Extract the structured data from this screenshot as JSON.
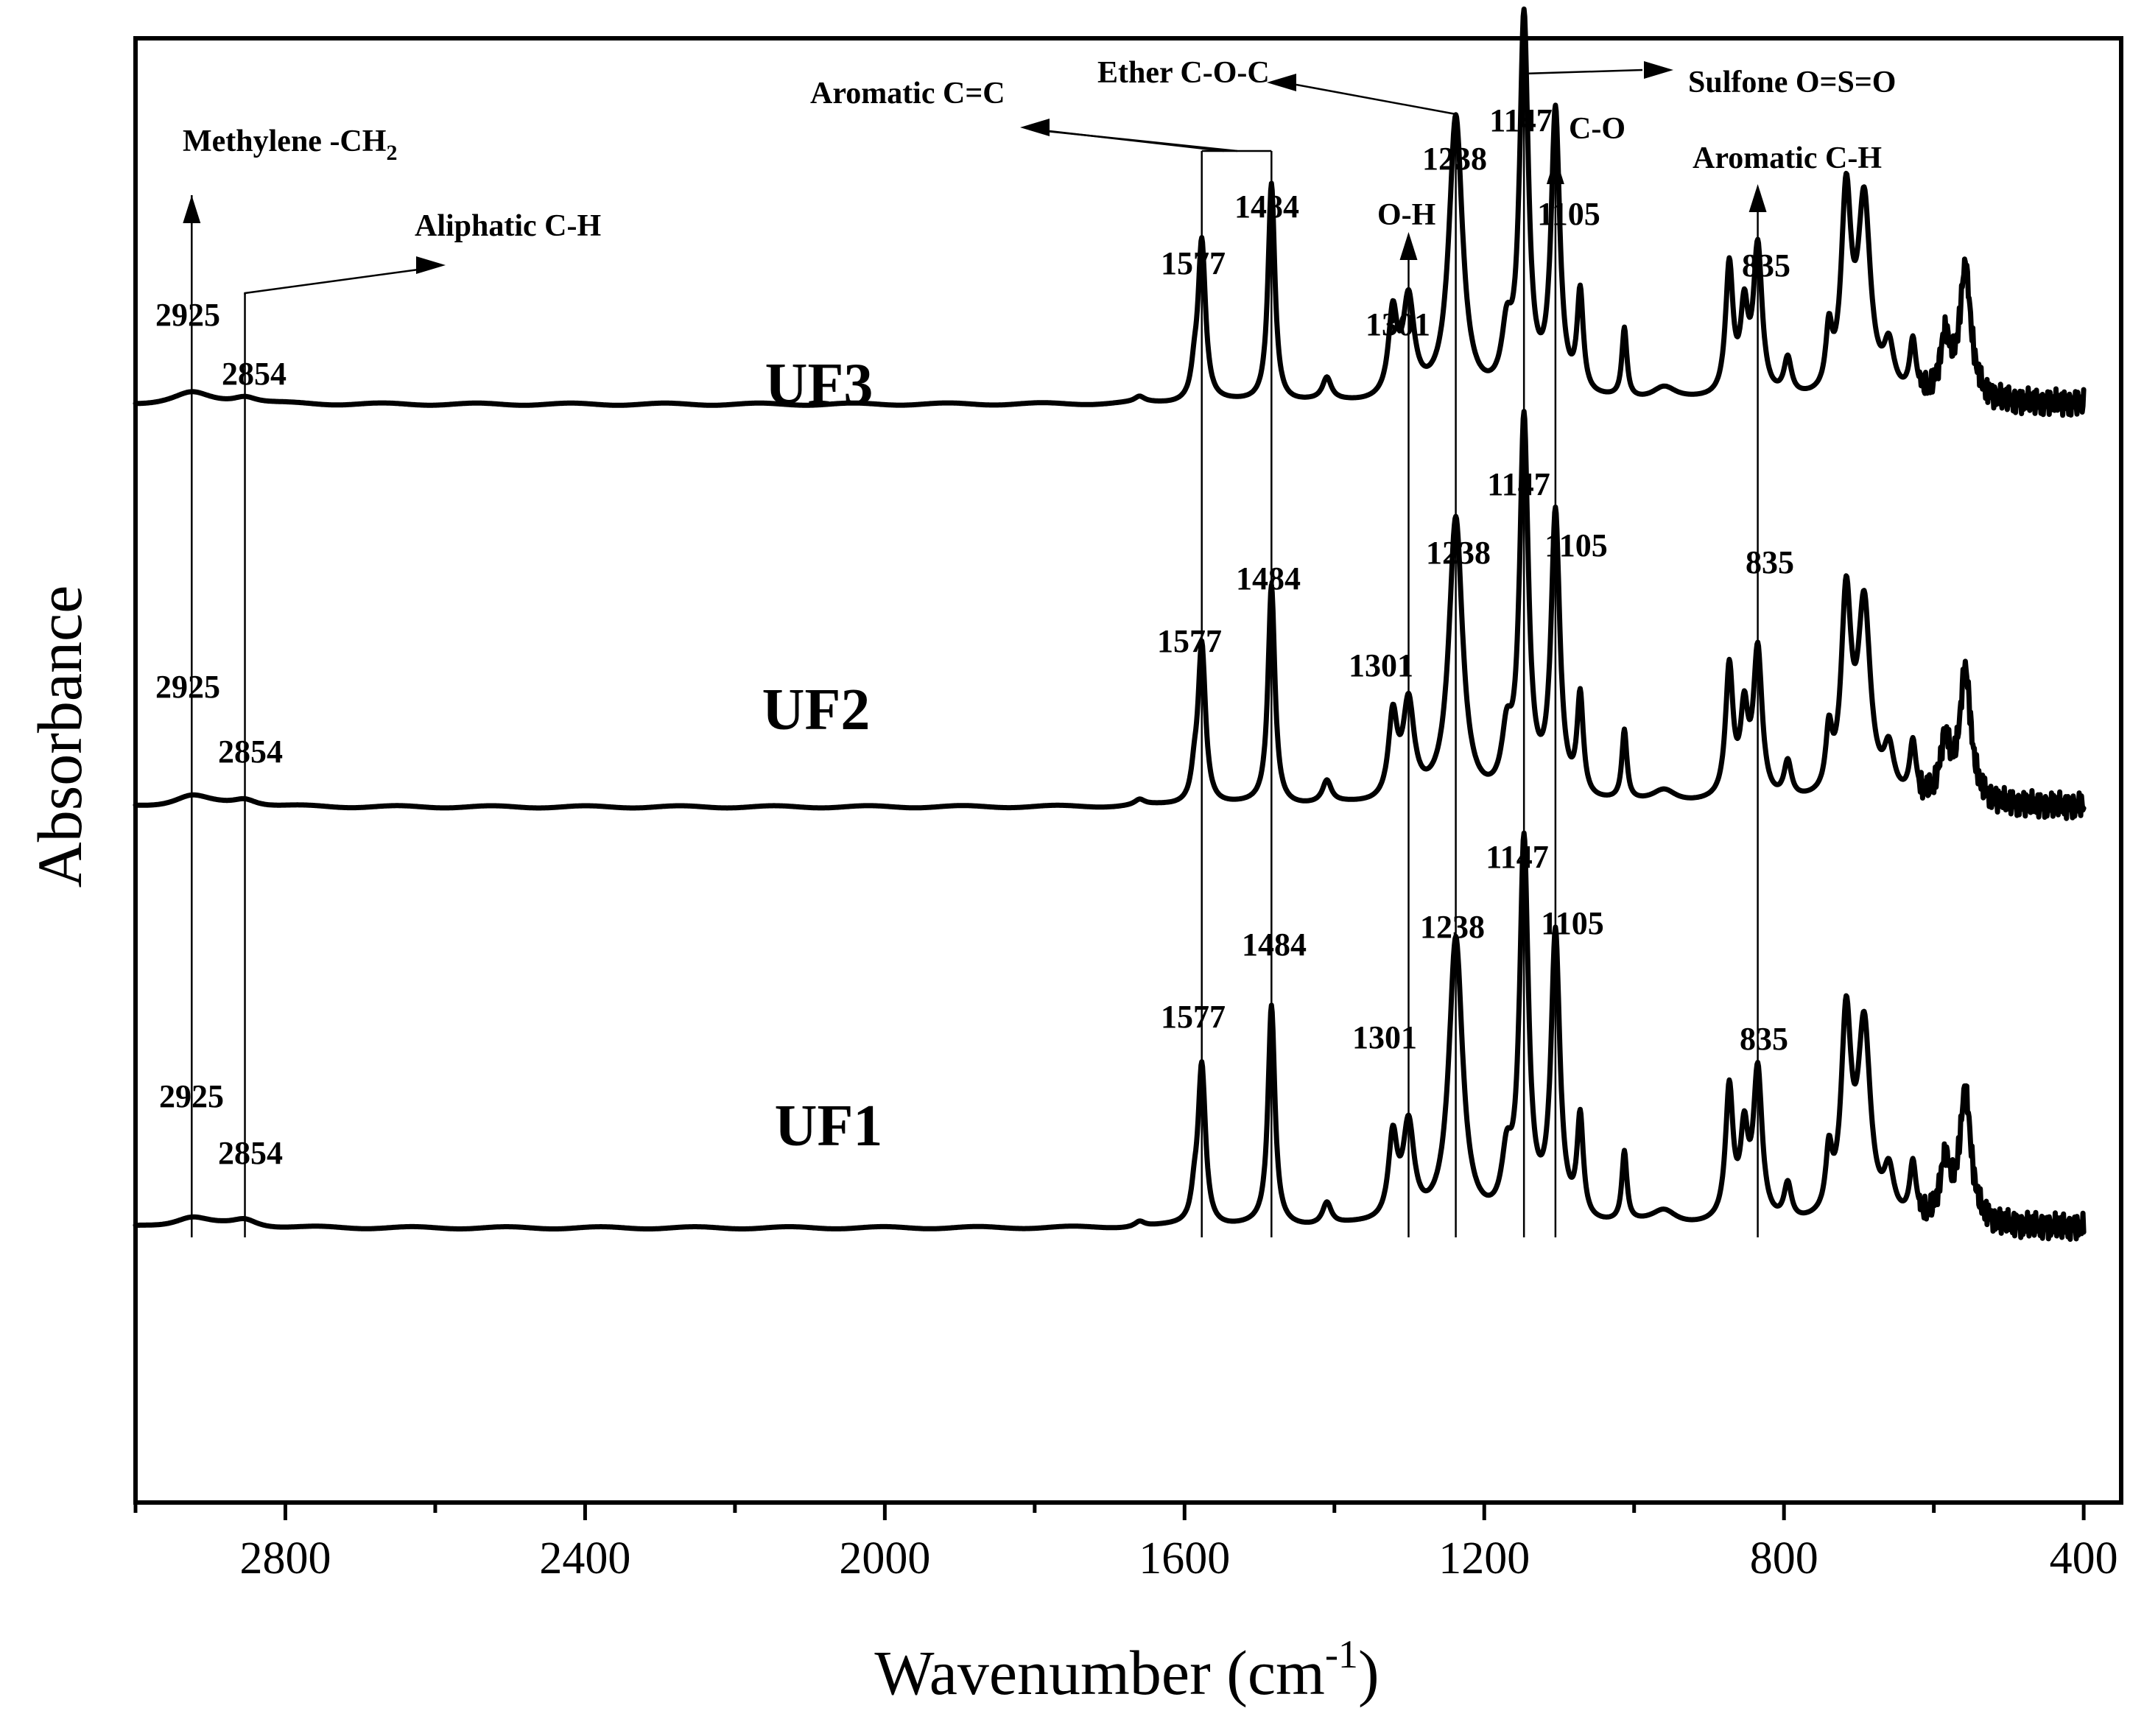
{
  "chart_data": {
    "type": "line",
    "title": "",
    "xlabel": "Wavenumber (cm",
    "xlabel_sup": "-1",
    "xlabel_close": ")",
    "ylabel": "Absorbance",
    "xlim": [
      3000,
      350
    ],
    "x_reversed": true,
    "y_ticks_shown": false,
    "x_ticks": [
      2800,
      2400,
      2000,
      1600,
      1200,
      800,
      400
    ],
    "x_tick_labels": [
      "2800",
      "2400",
      "2000",
      "1600",
      "1200",
      "800",
      "400"
    ],
    "series": [
      {
        "name": "UF3",
        "baseline": 6.0,
        "peak_labels": [
          {
            "x": 2925,
            "label": "2925"
          },
          {
            "x": 2854,
            "label": "2854"
          },
          {
            "x": 1577,
            "label": "1577"
          },
          {
            "x": 1484,
            "label": "1484"
          },
          {
            "x": 1301,
            "label": "1301"
          },
          {
            "x": 1238,
            "label": "1238"
          },
          {
            "x": 1147,
            "label": "1147"
          },
          {
            "x": 1105,
            "label": "1105"
          },
          {
            "x": 835,
            "label": "835"
          }
        ]
      },
      {
        "name": "UF2",
        "baseline": 3.8,
        "peak_labels": [
          {
            "x": 2925,
            "label": "2925"
          },
          {
            "x": 2854,
            "label": "2854"
          },
          {
            "x": 1577,
            "label": "1577"
          },
          {
            "x": 1484,
            "label": "1484"
          },
          {
            "x": 1301,
            "label": "1301"
          },
          {
            "x": 1238,
            "label": "1238"
          },
          {
            "x": 1147,
            "label": "1147"
          },
          {
            "x": 1105,
            "label": "1105"
          },
          {
            "x": 835,
            "label": "835"
          }
        ]
      },
      {
        "name": "UF1",
        "baseline": 1.5,
        "peak_labels": [
          {
            "x": 2925,
            "label": "2925"
          },
          {
            "x": 2854,
            "label": "2854"
          },
          {
            "x": 1577,
            "label": "1577"
          },
          {
            "x": 1484,
            "label": "1484"
          },
          {
            "x": 1301,
            "label": "1301"
          },
          {
            "x": 1238,
            "label": "1238"
          },
          {
            "x": 1147,
            "label": "1147"
          },
          {
            "x": 1105,
            "label": "1105"
          },
          {
            "x": 835,
            "label": "835"
          }
        ]
      }
    ],
    "peaks": [
      {
        "x": 2925,
        "height": 0.06,
        "width": 30
      },
      {
        "x": 2854,
        "height": 0.04,
        "width": 20
      },
      {
        "x": 1660,
        "height": 0.03,
        "width": 8
      },
      {
        "x": 1587,
        "height": 0.12,
        "width": 5
      },
      {
        "x": 1577,
        "height": 0.88,
        "width": 6
      },
      {
        "x": 1484,
        "height": 1.2,
        "width": 5.5
      },
      {
        "x": 1410,
        "height": 0.12,
        "width": 7
      },
      {
        "x": 1322,
        "height": 0.45,
        "width": 7
      },
      {
        "x": 1301,
        "height": 0.52,
        "width": 9
      },
      {
        "x": 1238,
        "height": 1.55,
        "width": 11
      },
      {
        "x": 1170,
        "height": 0.3,
        "width": 8
      },
      {
        "x": 1147,
        "height": 2.05,
        "width": 7
      },
      {
        "x": 1105,
        "height": 1.55,
        "width": 7
      },
      {
        "x": 1072,
        "height": 0.55,
        "width": 5
      },
      {
        "x": 1013,
        "height": 0.38,
        "width": 4
      },
      {
        "x": 960,
        "height": 0.08,
        "width": 20
      },
      {
        "x": 873,
        "height": 0.72,
        "width": 6
      },
      {
        "x": 853,
        "height": 0.45,
        "width": 6
      },
      {
        "x": 835,
        "height": 0.82,
        "width": 7
      },
      {
        "x": 795,
        "height": 0.2,
        "width": 6
      },
      {
        "x": 740,
        "height": 0.32,
        "width": 5
      },
      {
        "x": 717,
        "height": 1.08,
        "width": 8
      },
      {
        "x": 693,
        "height": 1.05,
        "width": 10
      },
      {
        "x": 660,
        "height": 0.25,
        "width": 8
      },
      {
        "x": 628,
        "height": 0.3,
        "width": 5
      },
      {
        "x": 585,
        "height": 0.32,
        "width": 8
      },
      {
        "x": 558,
        "height": 0.72,
        "width": 9
      }
    ],
    "markers": [
      {
        "x": 2925,
        "label": "Methylene -CH",
        "sub": "2"
      },
      {
        "x": 2854,
        "label": "Aliphatic C-H"
      },
      {
        "x": 1577,
        "label": "Aromatic C=C",
        "shared_with": 1484
      },
      {
        "x": 1301,
        "label": "O-H"
      },
      {
        "x": 1238,
        "label": "Ether C-O-C"
      },
      {
        "x": 1147,
        "label": "Sulfone O=S=O"
      },
      {
        "x": 1105,
        "label": "C-O"
      },
      {
        "x": 835,
        "label": "Aromatic C-H"
      }
    ]
  }
}
